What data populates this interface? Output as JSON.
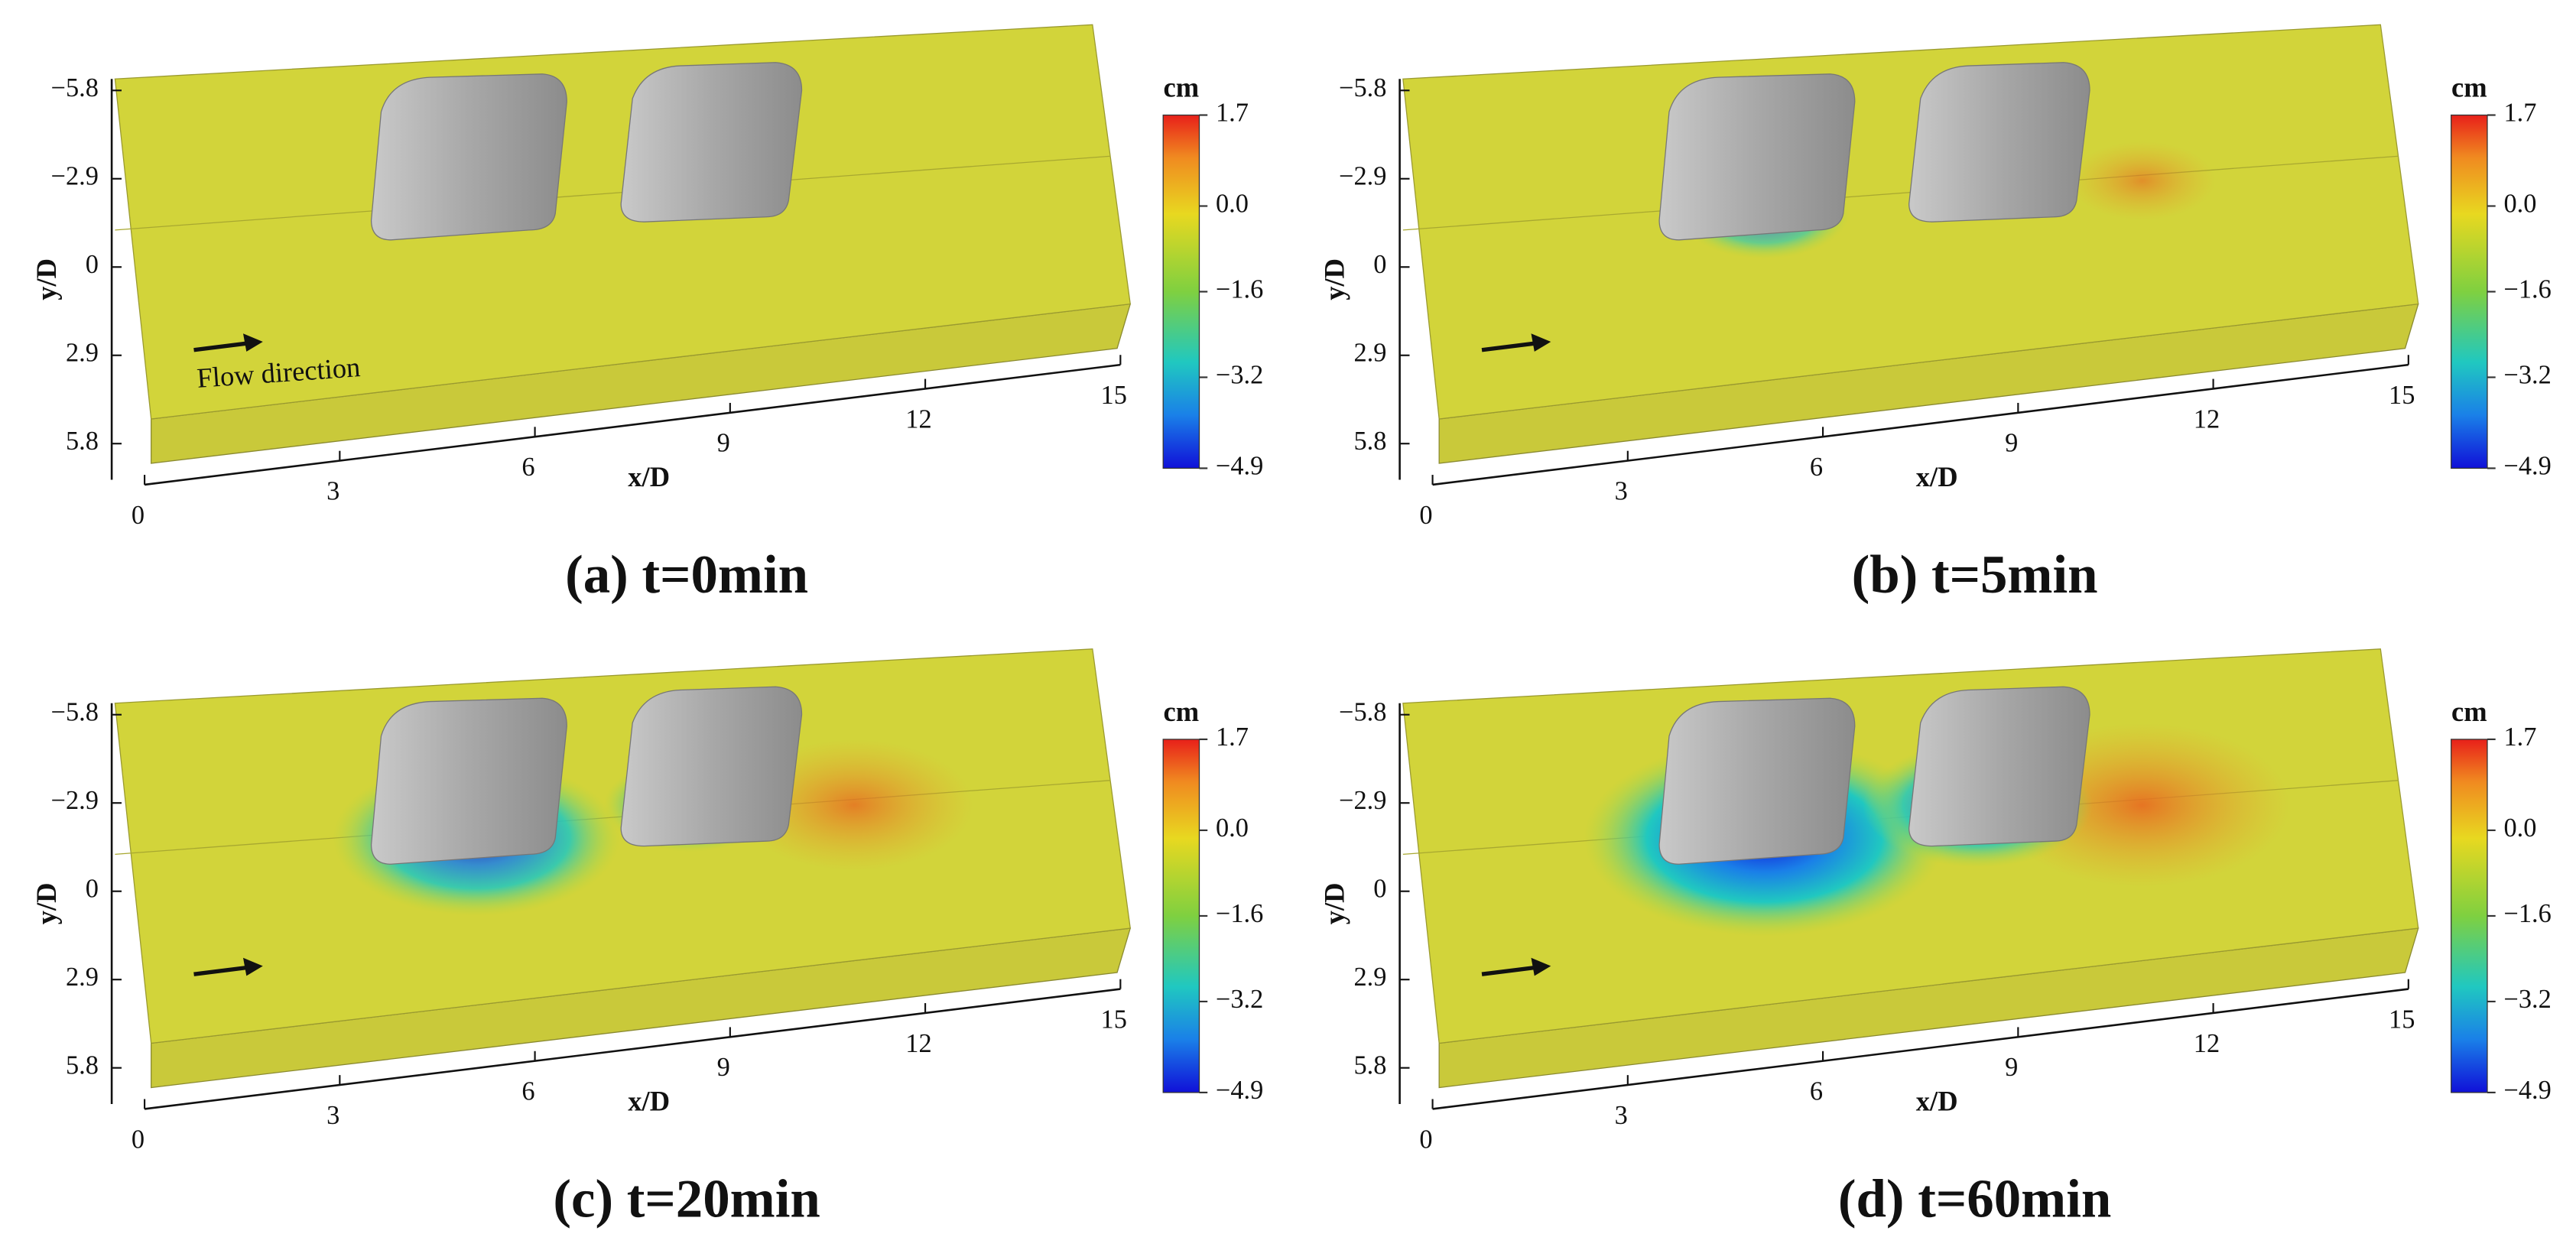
{
  "panels": [
    {
      "caption": "(a) t=0min",
      "annotation": "Flow direction"
    },
    {
      "caption": "(b) t=5min"
    },
    {
      "caption": "(c) t=20min"
    },
    {
      "caption": "(d) t=60min"
    }
  ],
  "x_axis": {
    "label": "x/D",
    "ticks": [
      0,
      3,
      6,
      9,
      12,
      15
    ]
  },
  "y_axis": {
    "label": "y/D",
    "ticks": [
      {
        "value": -5.8,
        "label": "−5.8"
      },
      {
        "value": -2.9,
        "label": "−2.9"
      },
      0,
      2.9,
      5.8
    ]
  },
  "colorbar": {
    "unit": "cm",
    "ticks": [
      1.7,
      {
        "value": 0,
        "label": "0.0"
      },
      {
        "value": -1.6,
        "label": "−1.6"
      },
      {
        "value": -3.2,
        "label": "−3.2"
      },
      {
        "value": -4.9,
        "label": "−4.9"
      }
    ]
  }
}
